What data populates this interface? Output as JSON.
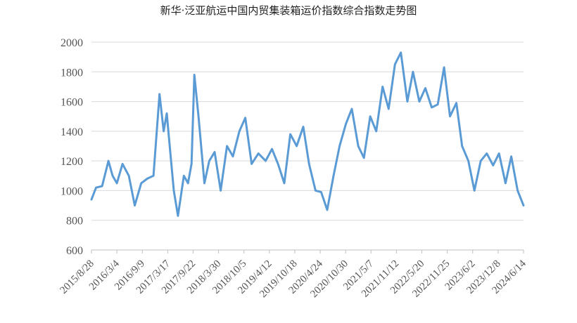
{
  "chart_data": {
    "type": "line",
    "title": "新华·泛亚航运中国内贸集装箱运价指数综合指数走势图",
    "xlabel": "",
    "ylabel": "",
    "ylim": [
      600,
      2000
    ],
    "yticks": [
      600,
      800,
      1000,
      1200,
      1400,
      1600,
      1800,
      2000
    ],
    "grid": "horizontal",
    "legend": "none",
    "line_color": "#5B9BD5",
    "x_tick_labels": [
      "2015/8/28",
      "2016/3/4",
      "2016/9/9",
      "2017/3/17",
      "2017/9/22",
      "2018/3/30",
      "2018/10/5",
      "2019/4/12",
      "2019/10/18",
      "2020/4/24",
      "2020/10/30",
      "2021/5/7",
      "2021/11/12",
      "2022/5/20",
      "2022/11/25",
      "2023/6/2",
      "2023/12/8",
      "2024/6/14"
    ],
    "series": [
      {
        "name": "",
        "x": [
          "2015/8/28",
          "2015/10/1",
          "2015/11/15",
          "2016/1/1",
          "2016/2/1",
          "2016/3/4",
          "2016/4/15",
          "2016/6/1",
          "2016/7/15",
          "2016/9/1",
          "2016/10/15",
          "2016/12/1",
          "2017/1/15",
          "2017/2/15",
          "2017/3/10",
          "2017/4/1",
          "2017/5/1",
          "2017/6/1",
          "2017/7/15",
          "2017/8/15",
          "2017/9/10",
          "2017/10/1",
          "2017/11/1",
          "2017/12/15",
          "2018/1/20",
          "2018/3/1",
          "2018/4/15",
          "2018/6/1",
          "2018/7/15",
          "2018/9/1",
          "2018/10/15",
          "2018/12/1",
          "2019/1/20",
          "2019/3/15",
          "2019/5/1",
          "2019/6/15",
          "2019/8/1",
          "2019/9/15",
          "2019/11/1",
          "2019/12/20",
          "2020/2/1",
          "2020/3/20",
          "2020/5/1",
          "2020/6/15",
          "2020/8/1",
          "2020/9/15",
          "2020/11/1",
          "2020/12/15",
          "2021/2/1",
          "2021/3/15",
          "2021/5/1",
          "2021/6/15",
          "2021/8/1",
          "2021/9/15",
          "2021/11/1",
          "2021/12/15",
          "2022/2/1",
          "2022/3/15",
          "2022/5/1",
          "2022/6/15",
          "2022/8/1",
          "2022/9/15",
          "2022/11/1",
          "2022/12/15",
          "2023/2/1",
          "2023/3/15",
          "2023/5/1",
          "2023/6/15",
          "2023/8/1",
          "2023/9/15",
          "2023/11/1",
          "2023/12/15",
          "2024/2/1",
          "2024/3/15",
          "2024/5/1",
          "2024/6/14"
        ],
        "values": [
          940,
          1020,
          1030,
          1200,
          1100,
          1050,
          1180,
          1100,
          900,
          1050,
          1080,
          1100,
          1650,
          1400,
          1520,
          1300,
          1000,
          830,
          1100,
          1050,
          1180,
          1780,
          1500,
          1050,
          1200,
          1260,
          1000,
          1300,
          1230,
          1400,
          1490,
          1180,
          1250,
          1200,
          1280,
          1180,
          1050,
          1380,
          1300,
          1430,
          1180,
          1000,
          990,
          870,
          1100,
          1300,
          1450,
          1550,
          1300,
          1220,
          1500,
          1400,
          1700,
          1550,
          1850,
          1930,
          1600,
          1800,
          1600,
          1690,
          1560,
          1580,
          1830,
          1500,
          1590,
          1300,
          1200,
          1000,
          1200,
          1250,
          1170,
          1250,
          1050,
          1230,
          1000,
          900
        ]
      }
    ]
  }
}
